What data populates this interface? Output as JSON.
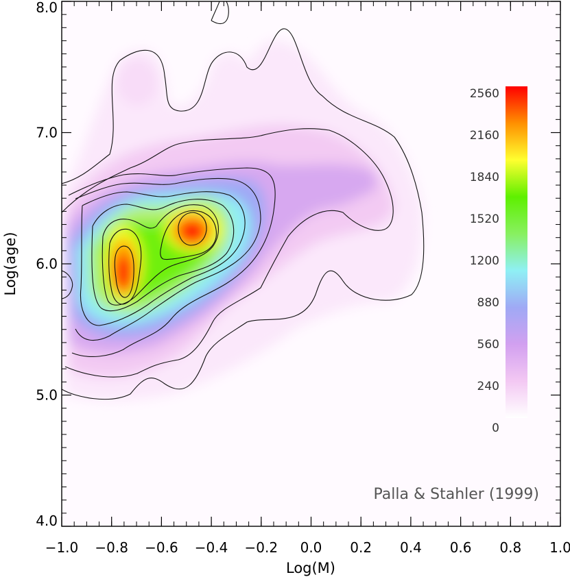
{
  "chart_data": {
    "type": "heatmap",
    "xlabel": "Log(M)",
    "ylabel": "Log(age)",
    "xlim": [
      -1.0,
      1.0
    ],
    "ylim": [
      4.0,
      8.0
    ],
    "x_ticks": [
      "−1.0",
      "−0.8",
      "−0.6",
      "−0.4",
      "−0.2",
      "0.0",
      "0.2",
      "0.4",
      "0.6",
      "0.8",
      "1.0"
    ],
    "y_ticks": [
      "4.0",
      "5.0",
      "6.0",
      "7.0",
      "8.0"
    ],
    "colorbar": {
      "range": [
        0,
        2560
      ],
      "ticks": [
        "0",
        "240",
        "560",
        "880",
        "1200",
        "1520",
        "1840",
        "2160",
        "2560"
      ],
      "colors": [
        "#ffffff",
        "#f3c8f3",
        "#d2a0f0",
        "#9fa9f5",
        "#8ff0f5",
        "#88f060",
        "#5ef000",
        "#ffff30",
        "#ff9000",
        "#ff0000"
      ]
    },
    "peaks": [
      {
        "x": -0.74,
        "y": 5.92,
        "value": 2560
      },
      {
        "x": -0.46,
        "y": 6.26,
        "value": 2560
      }
    ],
    "contour_levels": [
      60,
      240,
      560,
      880,
      1100,
      1400,
      1700,
      2000,
      2400
    ],
    "annotation": "Palla & Stahler (1999)",
    "grid": false
  }
}
